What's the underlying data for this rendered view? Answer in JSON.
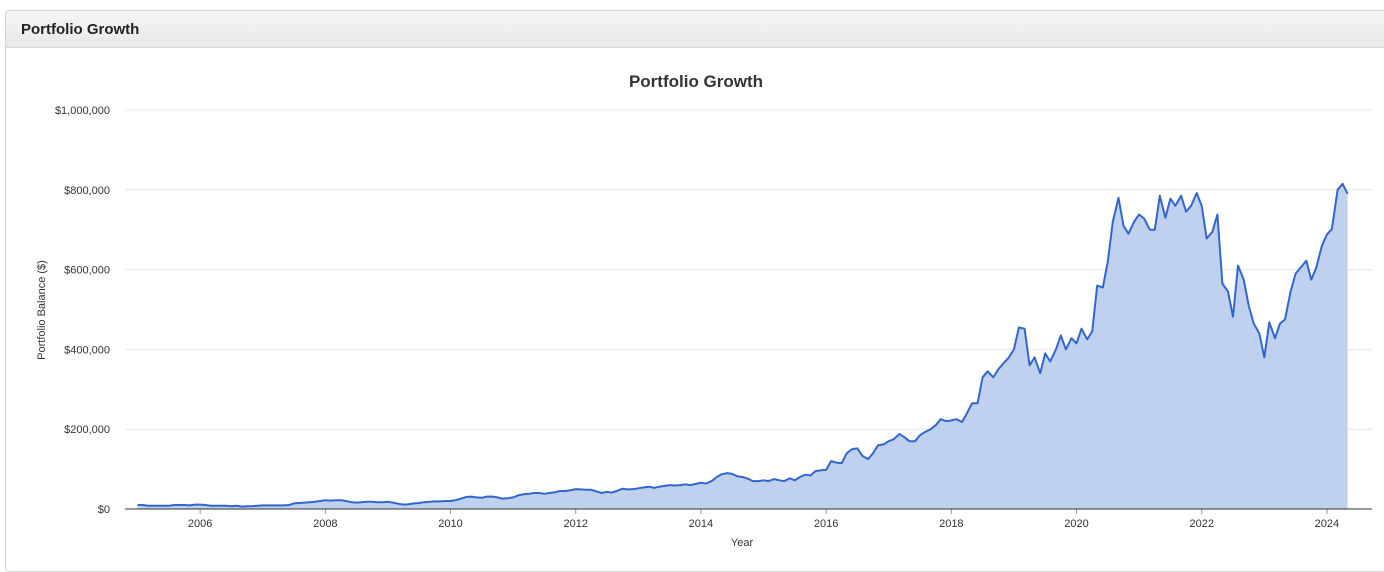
{
  "panel": {
    "title": "Portfolio Growth"
  },
  "chart_data": {
    "type": "area",
    "title": "Portfolio Growth",
    "x_label": "Year",
    "y_label": "Portfolio Balance ($)",
    "color": "#3366cc",
    "fill_color": "#c0d1f0",
    "grid": true,
    "xlim": [
      2004.8,
      2024.72
    ],
    "ylim": [
      0,
      1000000
    ],
    "xticks": [
      2006,
      2008,
      2010,
      2012,
      2014,
      2016,
      2018,
      2020,
      2022,
      2024
    ],
    "yticks": [
      {
        "value": 0,
        "label": "$0"
      },
      {
        "value": 200000,
        "label": "$200,000"
      },
      {
        "value": 400000,
        "label": "$400,000"
      },
      {
        "value": 600000,
        "label": "$600,000"
      },
      {
        "value": 800000,
        "label": "$800,000"
      },
      {
        "value": 1000000,
        "label": "$1,000,000"
      }
    ],
    "x": [
      2005.0,
      2005.08,
      2005.17,
      2005.25,
      2005.33,
      2005.42,
      2005.5,
      2005.58,
      2005.67,
      2005.75,
      2005.83,
      2005.92,
      2006.0,
      2006.08,
      2006.17,
      2006.25,
      2006.33,
      2006.42,
      2006.5,
      2006.58,
      2006.67,
      2006.75,
      2006.83,
      2006.92,
      2007.0,
      2007.08,
      2007.17,
      2007.25,
      2007.33,
      2007.42,
      2007.5,
      2007.58,
      2007.67,
      2007.75,
      2007.83,
      2007.92,
      2008.0,
      2008.08,
      2008.17,
      2008.25,
      2008.33,
      2008.42,
      2008.5,
      2008.58,
      2008.67,
      2008.75,
      2008.83,
      2008.92,
      2009.0,
      2009.08,
      2009.17,
      2009.25,
      2009.33,
      2009.42,
      2009.5,
      2009.58,
      2009.67,
      2009.75,
      2009.83,
      2009.92,
      2010.0,
      2010.08,
      2010.17,
      2010.25,
      2010.33,
      2010.42,
      2010.5,
      2010.58,
      2010.67,
      2010.75,
      2010.83,
      2010.92,
      2011.0,
      2011.08,
      2011.17,
      2011.25,
      2011.33,
      2011.42,
      2011.5,
      2011.58,
      2011.67,
      2011.75,
      2011.83,
      2011.92,
      2012.0,
      2012.08,
      2012.17,
      2012.25,
      2012.33,
      2012.42,
      2012.5,
      2012.58,
      2012.67,
      2012.75,
      2012.83,
      2012.92,
      2013.0,
      2013.08,
      2013.17,
      2013.25,
      2013.33,
      2013.42,
      2013.5,
      2013.58,
      2013.67,
      2013.75,
      2013.83,
      2013.92,
      2014.0,
      2014.08,
      2014.17,
      2014.25,
      2014.33,
      2014.42,
      2014.5,
      2014.58,
      2014.67,
      2014.75,
      2014.83,
      2014.92,
      2015.0,
      2015.08,
      2015.17,
      2015.25,
      2015.33,
      2015.42,
      2015.5,
      2015.58,
      2015.67,
      2015.75,
      2015.83,
      2015.92,
      2016.0,
      2016.08,
      2016.17,
      2016.25,
      2016.33,
      2016.42,
      2016.5,
      2016.58,
      2016.67,
      2016.75,
      2016.83,
      2016.92,
      2017.0,
      2017.08,
      2017.17,
      2017.25,
      2017.33,
      2017.42,
      2017.5,
      2017.58,
      2017.67,
      2017.75,
      2017.83,
      2017.92,
      2018.0,
      2018.08,
      2018.17,
      2018.25,
      2018.33,
      2018.42,
      2018.5,
      2018.58,
      2018.67,
      2018.75,
      2018.83,
      2018.92,
      2019.0,
      2019.08,
      2019.17,
      2019.25,
      2019.33,
      2019.42,
      2019.5,
      2019.58,
      2019.67,
      2019.75,
      2019.83,
      2019.92,
      2020.0,
      2020.08,
      2020.17,
      2020.25,
      2020.33,
      2020.42,
      2020.5,
      2020.58,
      2020.67,
      2020.75,
      2020.83,
      2020.92,
      2021.0,
      2021.08,
      2021.17,
      2021.25,
      2021.33,
      2021.42,
      2021.5,
      2021.58,
      2021.67,
      2021.75,
      2021.83,
      2021.92,
      2022.0,
      2022.08,
      2022.17,
      2022.25,
      2022.33,
      2022.42,
      2022.5,
      2022.58,
      2022.67,
      2022.75,
      2022.83,
      2022.92,
      2023.0,
      2023.08,
      2023.17,
      2023.25,
      2023.33,
      2023.42,
      2023.5,
      2023.58,
      2023.67,
      2023.75,
      2023.83,
      2023.92,
      2024.0,
      2024.08,
      2024.17,
      2024.25,
      2024.33
    ],
    "values": [
      10000,
      10000,
      8000,
      8000,
      8000,
      8000,
      8000,
      10000,
      10000,
      10000,
      9000,
      11000,
      11000,
      10000,
      8000,
      8000,
      8000,
      8000,
      7000,
      8000,
      6000,
      7000,
      7000,
      8000,
      9000,
      9000,
      9000,
      9000,
      9000,
      10000,
      14000,
      15000,
      16000,
      17000,
      18000,
      20000,
      22000,
      21000,
      22000,
      22000,
      20000,
      17000,
      16000,
      17000,
      18000,
      18000,
      17000,
      17000,
      18000,
      16000,
      13000,
      11000,
      12000,
      14000,
      15000,
      17000,
      18000,
      19000,
      19000,
      20000,
      20000,
      22000,
      26000,
      30000,
      31000,
      29000,
      28000,
      31000,
      31000,
      29000,
      26000,
      27000,
      29000,
      34000,
      37000,
      38000,
      40000,
      40000,
      38000,
      40000,
      42000,
      45000,
      45000,
      47000,
      50000,
      49000,
      48000,
      48000,
      44000,
      40000,
      43000,
      41000,
      46000,
      51000,
      49000,
      50000,
      52000,
      54000,
      56000,
      53000,
      56000,
      58000,
      60000,
      59000,
      60000,
      62000,
      60000,
      63000,
      66000,
      64000,
      70000,
      80000,
      87000,
      90000,
      88000,
      82000,
      80000,
      76000,
      70000,
      70000,
      72000,
      70000,
      75000,
      72000,
      70000,
      77000,
      72000,
      80000,
      86000,
      84000,
      95000,
      97000,
      98000,
      120000,
      116000,
      115000,
      140000,
      150000,
      152000,
      133000,
      125000,
      140000,
      160000,
      162000,
      170000,
      175000,
      188000,
      180000,
      170000,
      170000,
      185000,
      193000,
      200000,
      210000,
      225000,
      220000,
      222000,
      225000,
      218000,
      240000,
      265000,
      265000,
      330000,
      345000,
      330000,
      350000,
      365000,
      380000,
      400000,
      455000,
      452000,
      360000,
      380000,
      340000,
      390000,
      370000,
      400000,
      435000,
      400000,
      428000,
      415000,
      452000,
      425000,
      445000,
      560000,
      555000,
      620000,
      720000,
      780000,
      710000,
      690000,
      720000,
      738000,
      728000,
      700000,
      700000,
      785000,
      730000,
      778000,
      760000,
      785000,
      745000,
      760000,
      792000,
      760000,
      678000,
      695000,
      738000,
      565000,
      545000,
      482000,
      610000,
      575000,
      510000,
      465000,
      440000,
      380000,
      468000,
      428000,
      465000,
      475000,
      545000,
      590000,
      605000,
      622000,
      575000,
      605000,
      660000,
      688000,
      702000,
      800000,
      815000,
      790000
    ]
  }
}
